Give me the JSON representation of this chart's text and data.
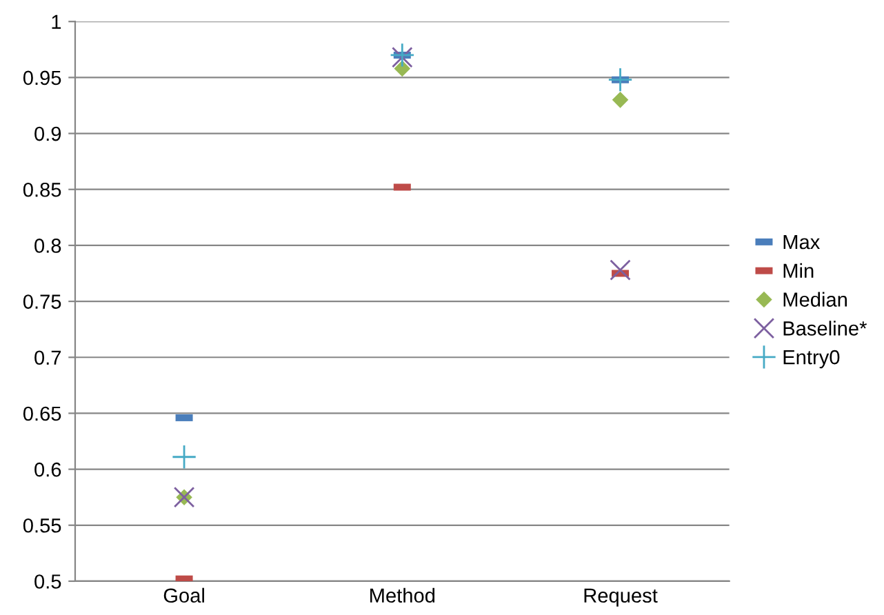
{
  "chart_data": {
    "type": "scatter",
    "categories": [
      "Goal",
      "Method",
      "Request"
    ],
    "series": [
      {
        "name": "Max",
        "color": "#4a7ebb",
        "marker": "square",
        "values": [
          0.646,
          0.97,
          0.948
        ]
      },
      {
        "name": "Min",
        "color": "#be4b48",
        "marker": "square",
        "values": [
          0.502,
          0.852,
          0.775
        ]
      },
      {
        "name": "Median",
        "color": "#98b954",
        "marker": "diamond",
        "values": [
          0.575,
          0.958,
          0.93
        ]
      },
      {
        "name": "Baseline*",
        "color": "#7d60a0",
        "marker": "cross",
        "values": [
          0.575,
          0.968,
          0.778
        ]
      },
      {
        "name": "Entry0",
        "color": "#46aac5",
        "marker": "plus",
        "values": [
          0.611,
          0.97,
          0.948
        ]
      }
    ],
    "ylim": [
      0.5,
      1
    ],
    "yticks": [
      0.5,
      0.55,
      0.6,
      0.65,
      0.7,
      0.75,
      0.8,
      0.85,
      0.9,
      0.95,
      {
        "value": 1,
        "label": "1"
      }
    ],
    "grid": "y",
    "legend": "right"
  }
}
